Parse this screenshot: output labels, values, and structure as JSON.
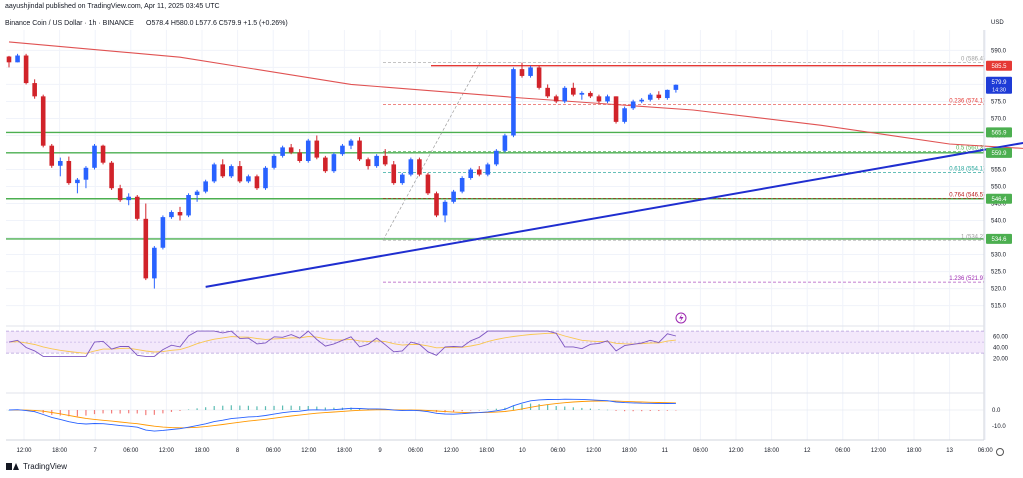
{
  "header": {
    "publisher": "aayushjindal published on TradingView.com, Apr 11, 2025 03:45 UTC",
    "symbol": "Binance Coin / US Dollar · 1h · BINANCE",
    "ohlc": "O578.4 H580.0 L577.6 C579.9 +1.5 (+0.26%)"
  },
  "footer": {
    "brand": "TradingView"
  },
  "colors": {
    "up": "#2962ff",
    "down": "#d1232a",
    "grid": "#f0f3fa",
    "support": "#4caf50",
    "resistance": "#e53935",
    "trend": "#1f2ed0",
    "ma": "#e05252",
    "rsi_band": "#f3e8fb",
    "rsi_line": "#7e57c2",
    "macd": "#2962ff",
    "signal": "#ff9800"
  },
  "chart_data": {
    "type": "candlestick",
    "symbol": "Binance Coin / US Dollar",
    "interval": "1h",
    "exchange": "BINANCE",
    "ylabel": "USD",
    "ylim": [
      509,
      596
    ],
    "y_ticks": [
      590,
      585,
      580,
      575,
      570,
      565,
      560,
      555,
      550,
      545,
      540,
      535,
      530,
      525,
      520,
      515
    ],
    "x_ticks": [
      "12:00",
      "18:00",
      "7",
      "06:00",
      "12:00",
      "18:00",
      "8",
      "06:00",
      "12:00",
      "18:00",
      "9",
      "06:00",
      "12:00",
      "18:00",
      "10",
      "06:00",
      "12:00",
      "18:00",
      "11",
      "06:00",
      "12:00",
      "18:00",
      "12",
      "06:00",
      "12:00",
      "18:00",
      "13",
      "06:00"
    ],
    "last_price": {
      "value": "579.9",
      "countdown": "14:30"
    },
    "horizontal_levels": [
      {
        "label": "585.5",
        "value": 585.5,
        "kind": "resistance"
      },
      {
        "label": "565.9",
        "value": 565.9,
        "kind": "support"
      },
      {
        "label": "559.9",
        "value": 559.9,
        "kind": "support"
      },
      {
        "label": "546.4",
        "value": 546.4,
        "kind": "support"
      },
      {
        "label": "534.6",
        "value": 534.6,
        "kind": "support"
      }
    ],
    "fibonacci": [
      {
        "ratio": "0",
        "label": "0 (586.4)",
        "value": 586.4
      },
      {
        "ratio": "0.236",
        "label": "0.236 (574.1)",
        "value": 574.1
      },
      {
        "ratio": "0.5",
        "label": "0.5 (560.3)",
        "value": 560.3
      },
      {
        "ratio": "0.618",
        "label": "0.618 (554.1)",
        "value": 554.1
      },
      {
        "ratio": "0.764",
        "label": "0.764 (546.5)",
        "value": 546.5
      },
      {
        "ratio": "1",
        "label": "1 (534.2)",
        "value": 534.2
      },
      {
        "ratio": "1.236",
        "label": "1.236 (521.9)",
        "value": 521.9
      }
    ],
    "trendline": {
      "from": {
        "bar": 23,
        "price": 520.5
      },
      "to": {
        "bar": 136,
        "price": 570.5
      }
    },
    "moving_average": [
      [
        0,
        592.5
      ],
      [
        20,
        588
      ],
      [
        40,
        580
      ],
      [
        60,
        576
      ],
      [
        80,
        572.5
      ],
      [
        95,
        568
      ],
      [
        110,
        562.5
      ],
      [
        120,
        561
      ],
      [
        136,
        561
      ]
    ],
    "candles": [
      [
        588.2,
        588.4,
        585.0,
        586.5
      ],
      [
        586.5,
        589.0,
        586.5,
        588.5
      ],
      [
        588.5,
        589.0,
        580.0,
        580.4
      ],
      [
        580.4,
        581.5,
        575.8,
        576.5
      ],
      [
        576.5,
        577.0,
        561.5,
        562.0
      ],
      [
        562.0,
        562.5,
        555.5,
        556.1
      ],
      [
        556.1,
        558.5,
        553.0,
        557.5
      ],
      [
        557.5,
        558.8,
        550.5,
        551.0
      ],
      [
        551.0,
        552.5,
        548.0,
        552.0
      ],
      [
        552.0,
        556.0,
        549.5,
        555.5
      ],
      [
        555.5,
        562.5,
        555.0,
        562.0
      ],
      [
        562.0,
        562.3,
        556.5,
        557.0
      ],
      [
        557.0,
        557.5,
        549.0,
        549.5
      ],
      [
        549.5,
        550.5,
        545.5,
        546.0
      ],
      [
        546.0,
        548.0,
        544.5,
        547.0
      ],
      [
        547.0,
        547.5,
        540.0,
        540.5
      ],
      [
        540.5,
        545.0,
        522.5,
        523.0
      ],
      [
        523.0,
        532.5,
        520.0,
        532.0
      ],
      [
        532.0,
        541.5,
        531.5,
        541.0
      ],
      [
        541.0,
        543.0,
        540.5,
        542.5
      ],
      [
        542.5,
        544.0,
        540.0,
        541.5
      ],
      [
        541.5,
        548.0,
        541.0,
        547.5
      ],
      [
        547.5,
        549.0,
        545.5,
        548.5
      ],
      [
        548.5,
        552.0,
        548.0,
        551.5
      ],
      [
        551.5,
        557.0,
        551.0,
        556.5
      ],
      [
        556.5,
        558.0,
        552.5,
        553.0
      ],
      [
        553.0,
        556.5,
        552.5,
        556.0
      ],
      [
        556.0,
        557.5,
        551.0,
        551.5
      ],
      [
        551.5,
        553.5,
        551.0,
        553.0
      ],
      [
        553.0,
        553.5,
        549.0,
        549.5
      ],
      [
        549.5,
        556.0,
        549.0,
        555.5
      ],
      [
        555.5,
        559.5,
        555.0,
        559.0
      ],
      [
        559.0,
        562.0,
        558.5,
        561.5
      ],
      [
        561.5,
        562.5,
        559.5,
        560.0
      ],
      [
        560.0,
        561.0,
        557.0,
        557.5
      ],
      [
        557.5,
        564.0,
        557.0,
        563.5
      ],
      [
        563.5,
        565.0,
        558.0,
        558.5
      ],
      [
        558.5,
        559.0,
        554.0,
        554.5
      ],
      [
        554.5,
        560.0,
        554.0,
        559.5
      ],
      [
        559.5,
        562.5,
        559.0,
        562.0
      ],
      [
        562.0,
        564.0,
        561.0,
        563.5
      ],
      [
        563.5,
        564.5,
        557.5,
        558.0
      ],
      [
        558.0,
        558.5,
        555.0,
        556.0
      ],
      [
        556.0,
        559.5,
        555.5,
        559.0
      ],
      [
        559.0,
        561.0,
        556.0,
        556.5
      ],
      [
        556.5,
        557.5,
        550.5,
        551.0
      ],
      [
        551.0,
        554.0,
        550.5,
        553.5
      ],
      [
        553.5,
        558.5,
        553.0,
        558.0
      ],
      [
        558.0,
        558.5,
        553.0,
        553.5
      ],
      [
        553.5,
        554.0,
        547.5,
        548.0
      ],
      [
        548.0,
        548.5,
        541.0,
        541.5
      ],
      [
        541.5,
        546.0,
        539.5,
        545.5
      ],
      [
        545.5,
        549.0,
        545.0,
        548.5
      ],
      [
        548.5,
        553.0,
        548.0,
        552.5
      ],
      [
        552.5,
        555.5,
        552.0,
        555.0
      ],
      [
        555.0,
        556.0,
        553.0,
        553.5
      ],
      [
        553.5,
        557.0,
        553.0,
        556.5
      ],
      [
        556.5,
        561.0,
        556.0,
        560.5
      ],
      [
        560.5,
        565.5,
        560.0,
        565.0
      ],
      [
        565.0,
        585.0,
        564.5,
        584.5
      ],
      [
        584.5,
        586.4,
        582.0,
        582.5
      ],
      [
        582.5,
        585.5,
        582.0,
        585.0
      ],
      [
        585.0,
        585.5,
        578.5,
        579.0
      ],
      [
        579.0,
        580.0,
        576.0,
        576.5
      ],
      [
        576.5,
        577.0,
        574.5,
        575.0
      ],
      [
        575.0,
        579.5,
        574.5,
        579.0
      ],
      [
        579.0,
        580.5,
        576.5,
        577.0
      ],
      [
        577.0,
        578.0,
        575.5,
        577.5
      ],
      [
        577.5,
        578.0,
        576.0,
        576.5
      ],
      [
        576.5,
        577.0,
        574.5,
        575.0
      ],
      [
        575.0,
        577.0,
        574.5,
        576.5
      ],
      [
        576.5,
        576.5,
        568.5,
        569.0
      ],
      [
        569.0,
        573.5,
        568.5,
        573.0
      ],
      [
        573.0,
        575.5,
        572.5,
        575.0
      ],
      [
        575.0,
        576.0,
        574.5,
        575.5
      ],
      [
        575.5,
        577.5,
        575.0,
        577.0
      ],
      [
        577.0,
        578.0,
        575.5,
        576.0
      ],
      [
        576.0,
        578.5,
        575.5,
        578.4
      ],
      [
        578.4,
        580.0,
        577.6,
        579.9
      ]
    ],
    "rsi": {
      "ticks": [
        60,
        40,
        20
      ],
      "band": [
        70,
        30
      ],
      "midline": 50
    },
    "macd": {
      "ticks": [
        0.0,
        -10.0
      ]
    }
  }
}
